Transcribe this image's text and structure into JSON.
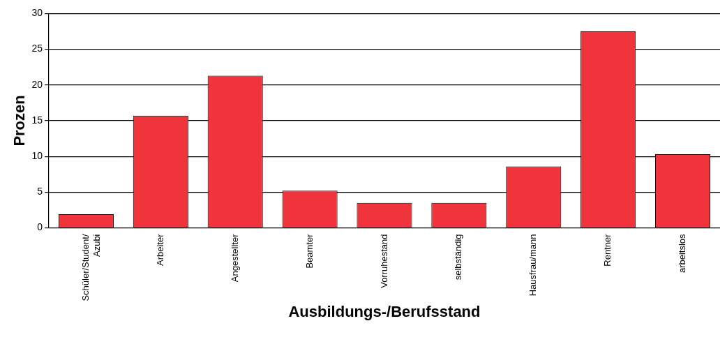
{
  "chart_data": {
    "type": "bar",
    "xlabel": "Ausbildungs-/Berufsstand",
    "ylabel": "Prozen",
    "categories": [
      "Schüler/Student/Azubi",
      "Arbeiter",
      "Angestellter",
      "Beamter",
      "Vorruhestand",
      "selbständig",
      "Hausfrau/mann",
      "Rentner",
      "arbeitslos"
    ],
    "values": [
      1.9,
      15.7,
      21.3,
      5.2,
      3.5,
      3.5,
      8.6,
      27.5,
      10.3
    ],
    "color": "#ef343c",
    "ylim": [
      0,
      30
    ],
    "yticks": [
      0,
      5,
      10,
      15,
      20,
      25,
      30
    ],
    "grid": "y",
    "legend": false
  }
}
